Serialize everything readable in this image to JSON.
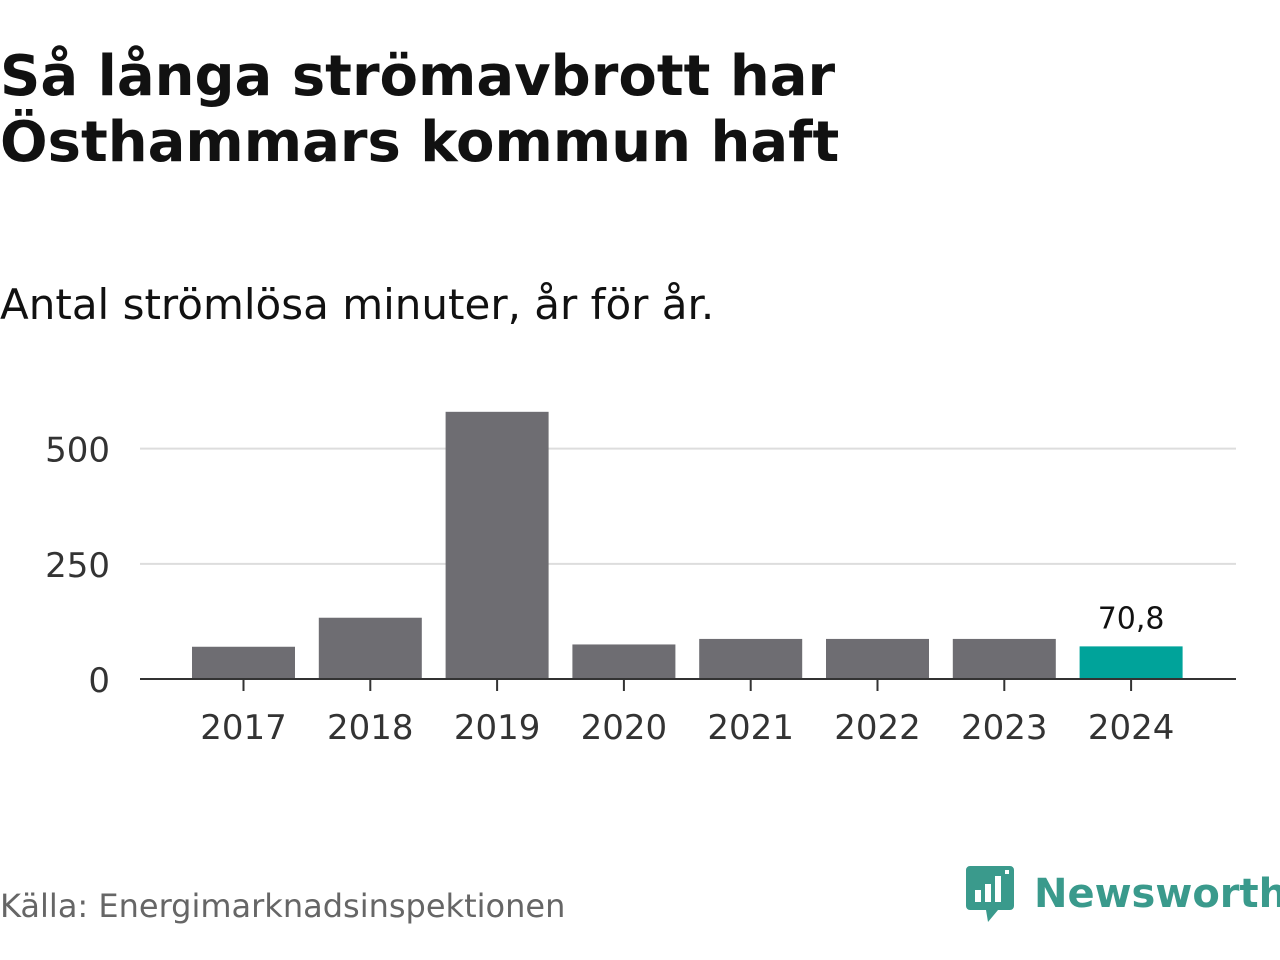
{
  "title": "Så långa strömavbrott har Östhammars kommun haft",
  "subtitle": "Antal strömlösa minuter, år för år.",
  "source": "Källa: Energimarknadsinspektionen",
  "brand": {
    "name": "Newsworthy",
    "icon": "newsworthy-logo-icon",
    "color": "#3a9a8c"
  },
  "colors": {
    "bar": "#6e6d72",
    "highlight": "#00a39a",
    "grid": "#dddddd",
    "axis": "#333333",
    "text": "#333333"
  },
  "chart_data": {
    "type": "bar",
    "categories": [
      "2017",
      "2018",
      "2019",
      "2020",
      "2021",
      "2022",
      "2023",
      "2024"
    ],
    "values": [
      70,
      133,
      580,
      75,
      87,
      87,
      87,
      70.8
    ],
    "ylim": [
      0,
      610
    ],
    "yticks": [
      0,
      250,
      500
    ],
    "ytick_labels": [
      "0",
      "250",
      "500"
    ],
    "highlight_index": 7,
    "data_labels": [
      {
        "index": 7,
        "text": "70,8"
      }
    ],
    "xlabel": "",
    "ylabel": "",
    "grid": true
  }
}
